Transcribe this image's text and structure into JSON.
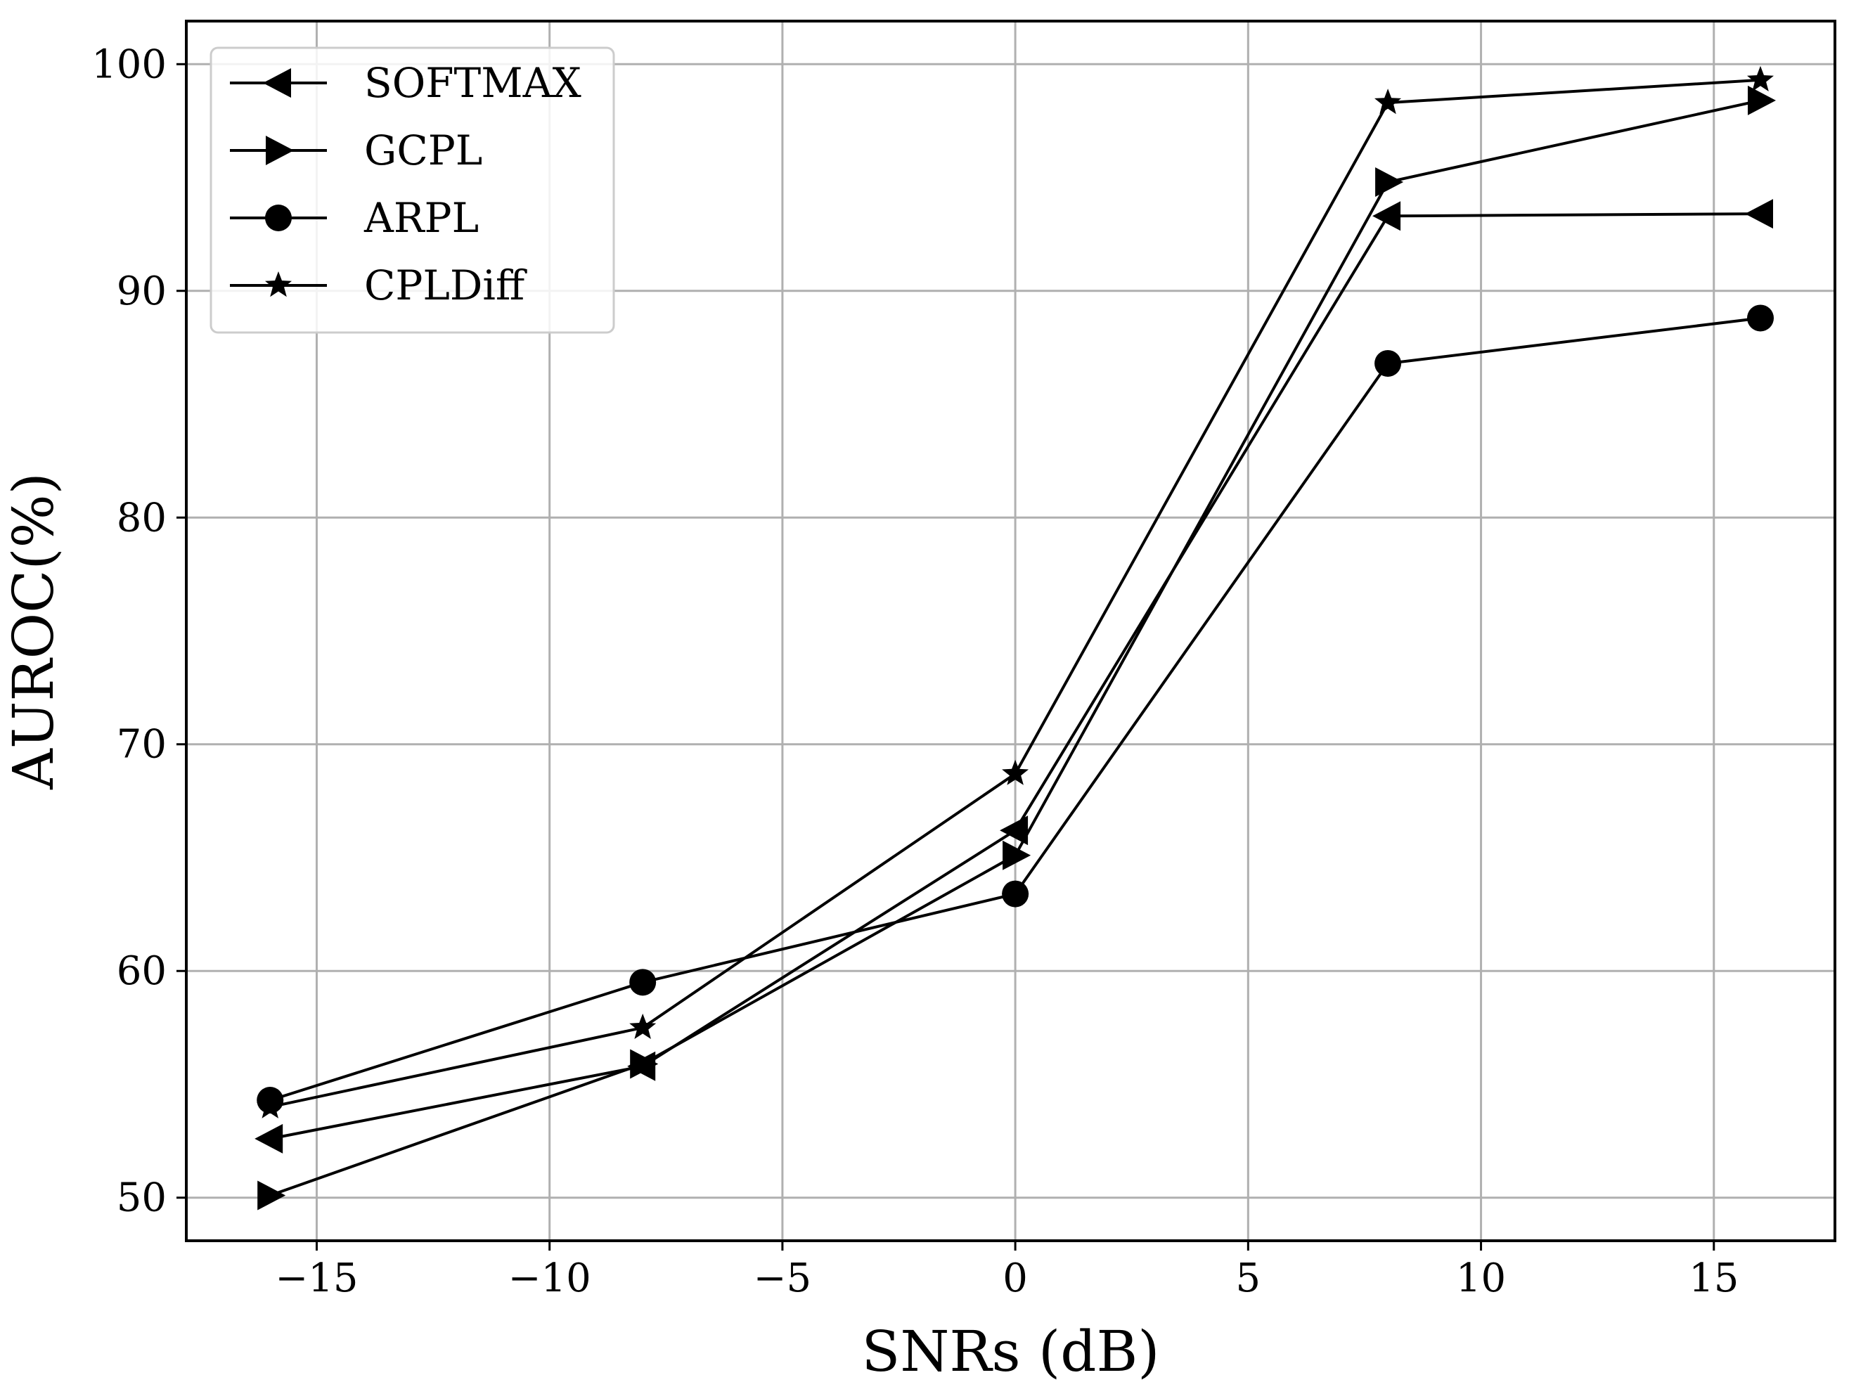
{
  "chart_data": {
    "type": "line",
    "title": "",
    "xlabel": "SNRs (dB)",
    "ylabel": "AUROC(%)",
    "xlim": [
      -17.8,
      17.6
    ],
    "ylim": [
      48.1,
      101.9
    ],
    "xticks": [
      -15,
      -10,
      -5,
      0,
      5,
      10,
      15
    ],
    "xtick_labels": [
      "−15",
      "−10",
      "−5",
      "0",
      "5",
      "10",
      "15"
    ],
    "yticks": [
      50,
      60,
      70,
      80,
      90,
      100
    ],
    "ytick_labels": [
      "50",
      "60",
      "70",
      "80",
      "90",
      "100"
    ],
    "grid": true,
    "legend_position": "top-left",
    "x": [
      -16,
      -8,
      0,
      8,
      16
    ],
    "series": [
      {
        "name": "SOFTMAX",
        "marker": "triangle-left",
        "values": [
          52.6,
          55.8,
          66.2,
          93.3,
          93.4
        ]
      },
      {
        "name": "GCPL",
        "marker": "triangle-right",
        "values": [
          50.1,
          55.9,
          65.1,
          94.8,
          98.4
        ]
      },
      {
        "name": "ARPL",
        "marker": "circle",
        "values": [
          54.3,
          59.5,
          63.4,
          86.8,
          88.8
        ]
      },
      {
        "name": "CPLDiff",
        "marker": "star",
        "values": [
          54.0,
          57.5,
          68.7,
          98.3,
          99.3
        ]
      }
    ]
  }
}
